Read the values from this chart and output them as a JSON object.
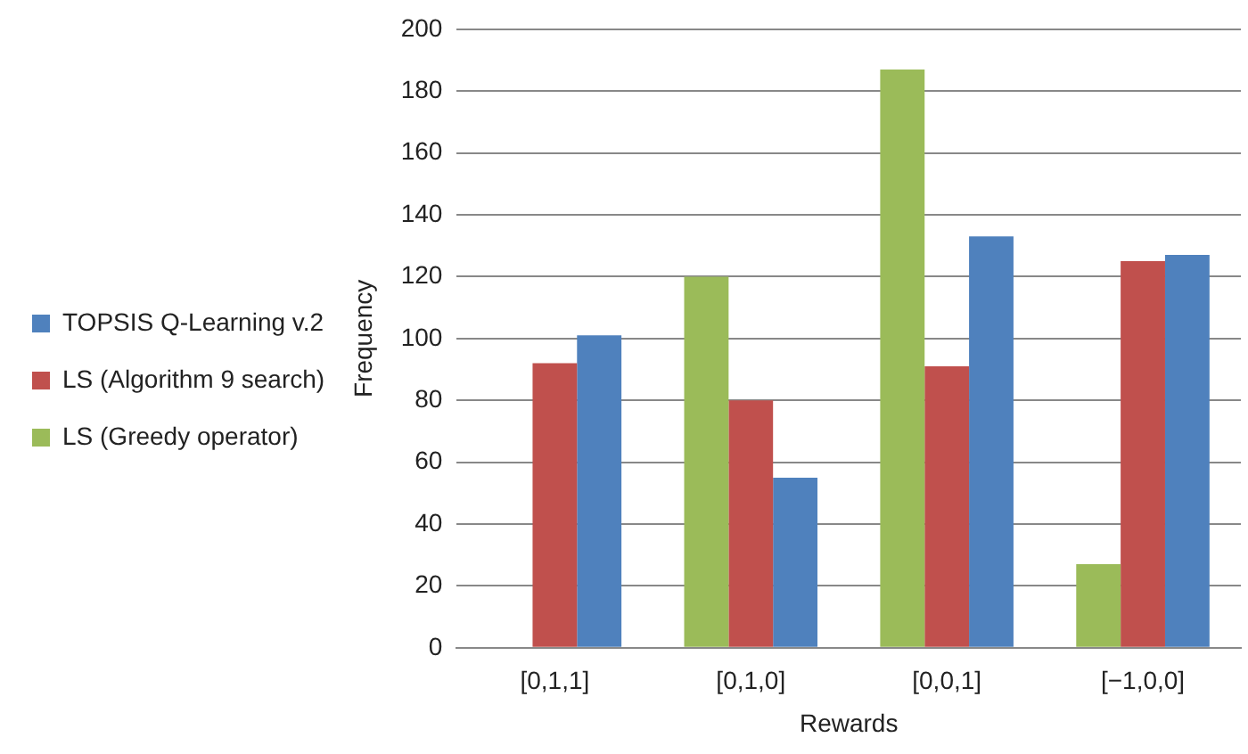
{
  "chart_data": {
    "type": "bar",
    "xlabel": "Rewards",
    "ylabel": "Frequency",
    "categories": [
      "[0,1,1]",
      "[0,1,0]",
      "[0,0,1]",
      "[−1,0,0]"
    ],
    "series": [
      {
        "name": "LS (Greedy operator)",
        "color": "#9bbb59",
        "values": [
          0,
          120,
          187,
          27
        ]
      },
      {
        "name": "LS (Algorithm 9 search)",
        "color": "#c0504d",
        "values": [
          92,
          80,
          91,
          125
        ]
      },
      {
        "name": "TOPSIS Q-Learning v.2",
        "color": "#4f81bd",
        "values": [
          101,
          55,
          133,
          127
        ]
      }
    ],
    "ylim": [
      0,
      200
    ],
    "yticks": [
      0,
      20,
      40,
      60,
      80,
      100,
      120,
      140,
      160,
      180,
      200
    ],
    "grid": "y",
    "legend": "left"
  }
}
